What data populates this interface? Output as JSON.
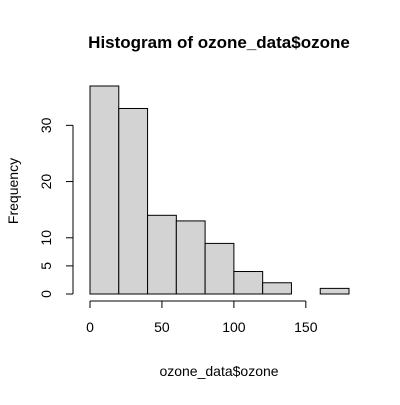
{
  "chart_data": {
    "type": "bar",
    "subtype": "histogram",
    "title": "Histogram of ozone_data$ozone",
    "xlabel": "ozone_data$ozone",
    "ylabel": "Frequency",
    "bin_edges": [
      0,
      20,
      40,
      60,
      80,
      100,
      120,
      140,
      160,
      180
    ],
    "values": [
      37,
      33,
      14,
      13,
      9,
      4,
      2,
      0,
      1
    ],
    "x_ticks": [
      0,
      50,
      100,
      150
    ],
    "y_ticks": [
      0,
      5,
      10,
      20,
      30
    ],
    "xlim": [
      0,
      180
    ],
    "ylim": [
      0,
      37
    ],
    "bar_fill": "#d3d3d3",
    "bar_stroke": "#000000",
    "grid": false,
    "legend": "none"
  }
}
